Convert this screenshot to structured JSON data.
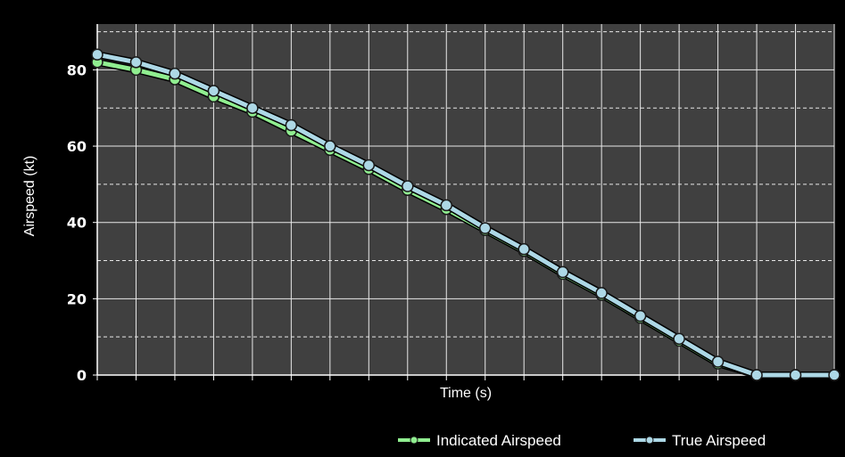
{
  "chart_data": {
    "type": "line",
    "title": "",
    "xlabel": "Time (s)",
    "ylabel": "Airspeed (kt)",
    "ylim": [
      0,
      92
    ],
    "y_ticks": [
      "0",
      "20",
      "40",
      "60",
      "80"
    ],
    "grid": true,
    "legend_position": "bottom-right",
    "x": [
      0,
      1,
      2,
      3,
      4,
      5,
      6,
      7,
      8,
      9,
      10,
      11,
      12,
      13,
      14,
      15,
      16,
      17,
      18,
      19
    ],
    "series": [
      {
        "name": "Indicated Airspeed",
        "color": "#90ee90",
        "values": [
          82,
          80,
          77.5,
          73,
          69,
          64,
          59,
          54,
          48.5,
          43.5,
          38,
          32.5,
          26.5,
          21,
          15,
          9,
          3,
          0,
          0,
          0
        ]
      },
      {
        "name": "True Airspeed",
        "color": "#add8e6",
        "values": [
          84,
          82,
          79,
          74.5,
          70,
          65.5,
          60,
          55,
          49.5,
          44.5,
          38.5,
          33,
          27,
          21.5,
          15.5,
          9.5,
          3.5,
          0,
          0,
          0
        ]
      }
    ],
    "plot_background": "#404040",
    "grid_color": "#e8e8e8",
    "page_background": "#000000"
  }
}
